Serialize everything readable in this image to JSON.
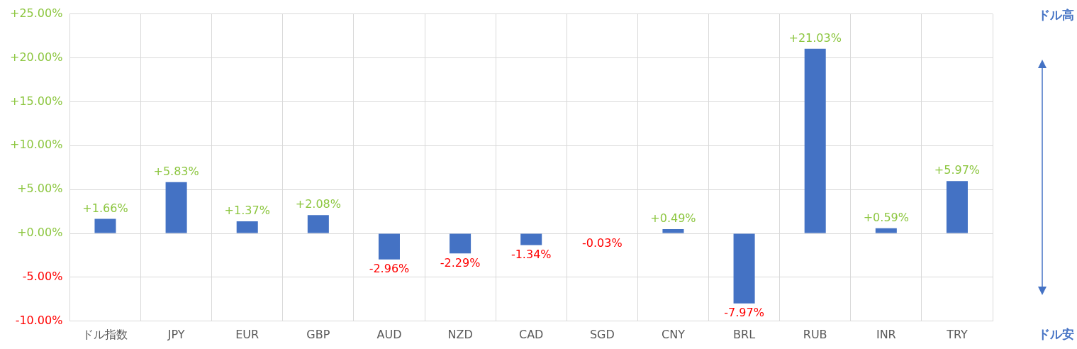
{
  "chart_data": {
    "type": "bar",
    "categories": [
      "ドル指数",
      "JPY",
      "EUR",
      "GBP",
      "AUD",
      "NZD",
      "CAD",
      "SGD",
      "CNY",
      "BRL",
      "RUB",
      "INR",
      "TRY"
    ],
    "values": [
      1.66,
      5.83,
      1.37,
      2.08,
      -2.96,
      -2.29,
      -1.34,
      -0.03,
      0.49,
      -7.97,
      21.03,
      0.59,
      5.97
    ],
    "value_labels": [
      "+1.66%",
      "+5.83%",
      "+1.37%",
      "+2.08%",
      "-2.96%",
      "-2.29%",
      "-1.34%",
      "-0.03%",
      "+0.49%",
      "-7.97%",
      "+21.03%",
      "+0.59%",
      "+5.97%"
    ],
    "color": "#4472c4",
    "ylim": [
      -10,
      25
    ],
    "yticks": [
      {
        "value": -10,
        "label": "-10.00%"
      },
      {
        "value": -5,
        "label": "-5.00%"
      },
      {
        "value": 0,
        "label": "+0.00%"
      },
      {
        "value": 5,
        "label": "+5.00%"
      },
      {
        "value": 10,
        "label": "+10.00%"
      },
      {
        "value": 15,
        "label": "+15.00%"
      },
      {
        "value": 20,
        "label": "+20.00%"
      },
      {
        "value": 25,
        "label": "+25.00%"
      }
    ],
    "grid": true,
    "annotations": [
      "ドル高",
      "ドル安"
    ]
  }
}
